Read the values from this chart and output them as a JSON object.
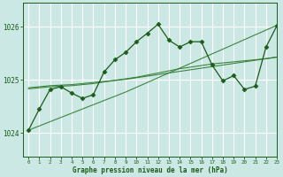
{
  "bg_color": "#cce8e4",
  "grid_color": "#ffffff",
  "line_dark": "#1a5c1a",
  "line_mid": "#2d7a2d",
  "xlabel": "Graphe pression niveau de la mer (hPa)",
  "ylabel_ticks": [
    1024,
    1025,
    1026
  ],
  "xlim": [
    -0.5,
    23
  ],
  "ylim": [
    1023.55,
    1026.45
  ],
  "xticks": [
    0,
    1,
    2,
    3,
    4,
    5,
    6,
    7,
    8,
    9,
    10,
    11,
    12,
    13,
    14,
    15,
    16,
    17,
    18,
    19,
    20,
    21,
    22,
    23
  ],
  "series_jagged": [
    1024.05,
    1024.45,
    1024.82,
    1024.87,
    1024.75,
    1024.65,
    1024.72,
    1025.15,
    1025.38,
    1025.52,
    1025.72,
    1025.88,
    1026.05,
    1025.75,
    1025.62,
    1025.72,
    1025.72,
    1025.28,
    1024.98,
    1025.08,
    1024.82,
    1024.88,
    1025.62,
    1026.02
  ],
  "series_smooth1": [
    1024.85,
    1024.87,
    1024.89,
    1024.9,
    1024.91,
    1024.93,
    1024.95,
    1024.97,
    1024.99,
    1025.01,
    1025.04,
    1025.07,
    1025.1,
    1025.13,
    1025.16,
    1025.19,
    1025.22,
    1025.25,
    1025.28,
    1025.31,
    1025.34,
    1025.37,
    1025.4,
    1025.43
  ],
  "series_smooth2": [
    1024.83,
    1024.85,
    1024.87,
    1024.88,
    1024.89,
    1024.91,
    1024.93,
    1024.96,
    1024.99,
    1025.02,
    1025.05,
    1025.09,
    1025.13,
    1025.17,
    1025.21,
    1025.24,
    1025.27,
    1025.3,
    1025.32,
    1025.34,
    1025.36,
    1025.38,
    1025.4,
    1025.43
  ],
  "series_linear": [
    1024.05,
    1024.13,
    1024.21,
    1024.29,
    1024.37,
    1024.45,
    1024.53,
    1024.61,
    1024.69,
    1024.77,
    1024.86,
    1024.95,
    1025.04,
    1025.13,
    1025.22,
    1025.31,
    1025.4,
    1025.49,
    1025.58,
    1025.67,
    1025.76,
    1025.85,
    1025.94,
    1026.03
  ],
  "marker": "D",
  "marker_size": 2.5
}
